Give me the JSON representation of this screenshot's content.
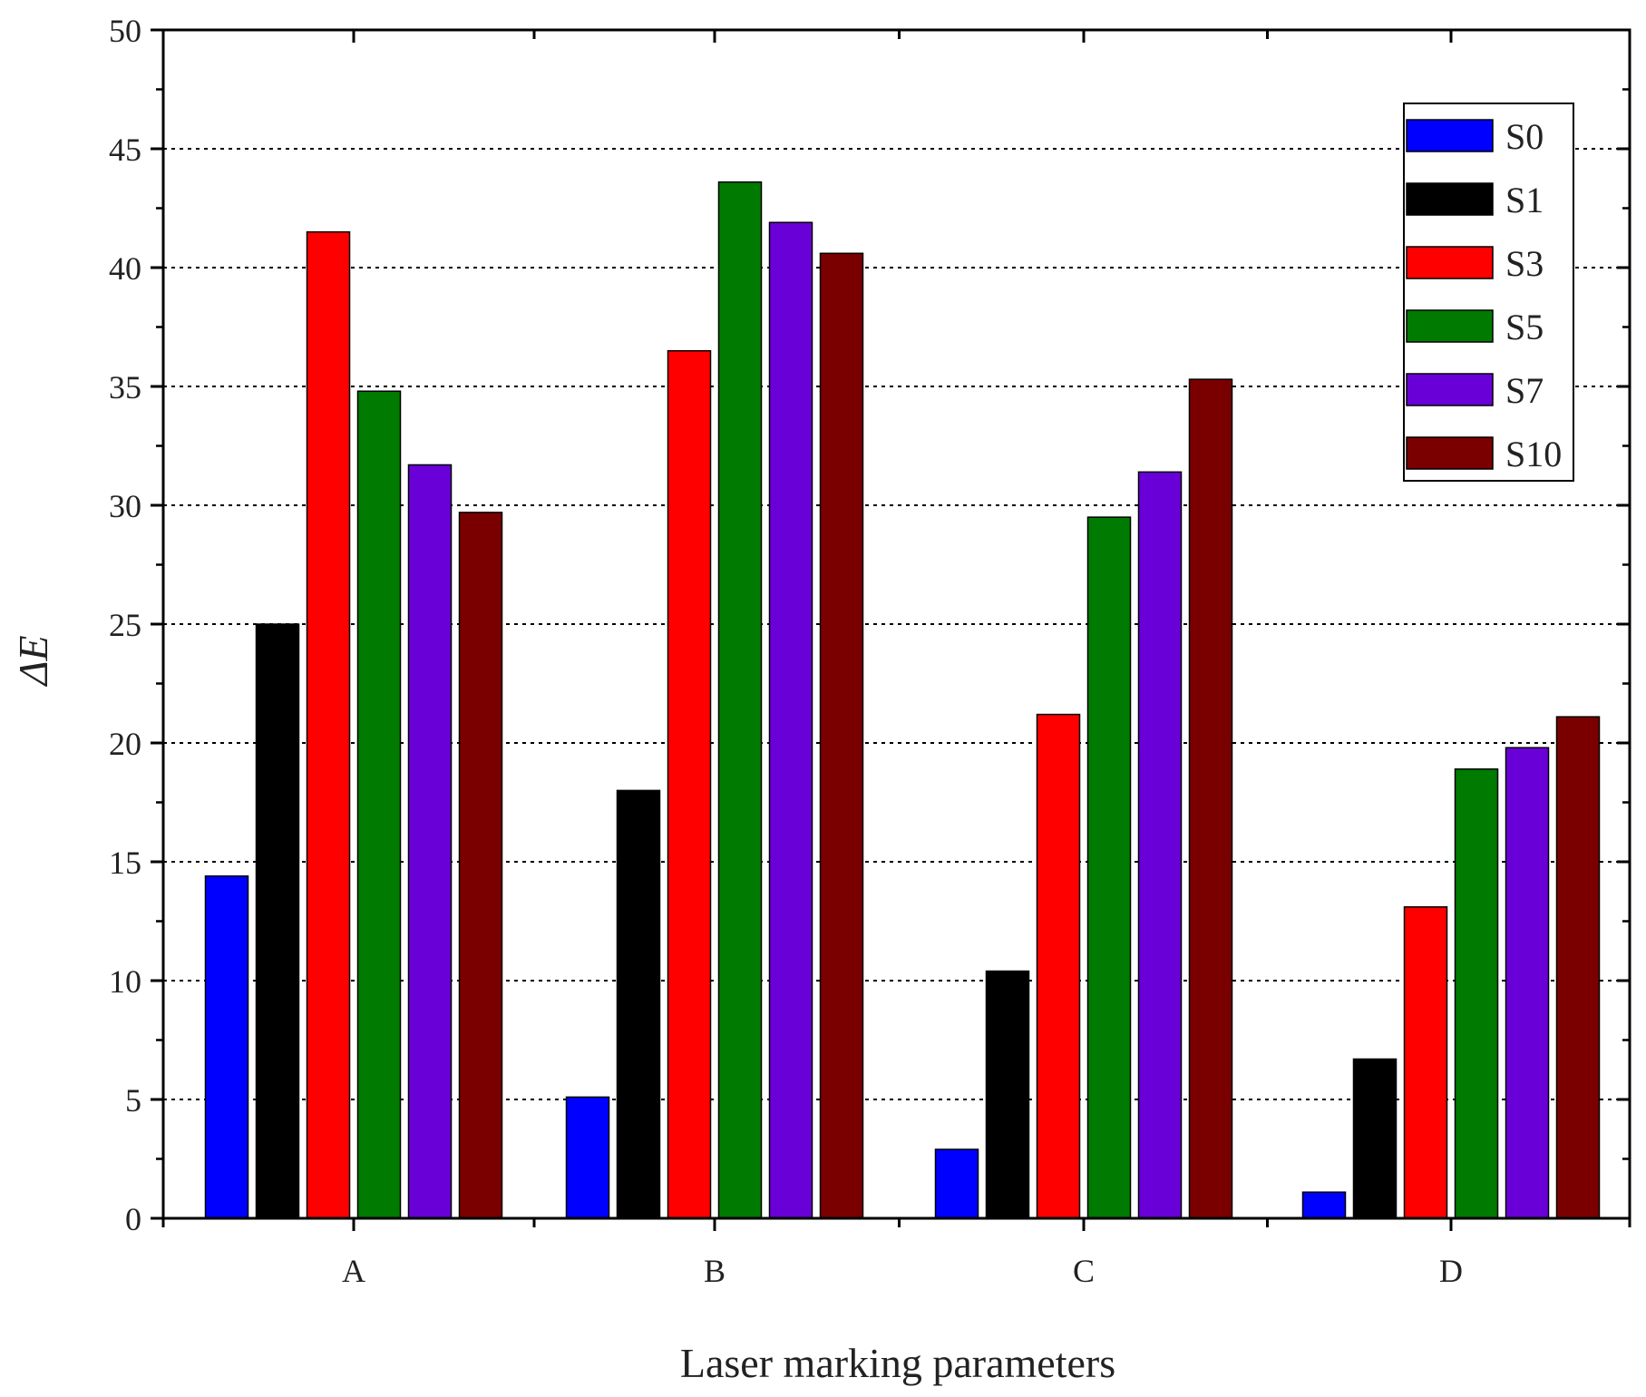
{
  "chart_data": {
    "type": "bar",
    "title": "",
    "xlabel": "Laser marking parameters",
    "ylabel": "ΔE",
    "categories": [
      "A",
      "B",
      "C",
      "D"
    ],
    "ylim": [
      0,
      50
    ],
    "yticks": [
      0,
      5,
      10,
      15,
      20,
      25,
      30,
      35,
      40,
      45,
      50
    ],
    "grid": "horizontal dotted",
    "legend_position": "top-right",
    "series": [
      {
        "name": "S0",
        "color": "#0000ff",
        "values": [
          14.4,
          5.1,
          2.9,
          1.1
        ]
      },
      {
        "name": "S1",
        "color": "#000000",
        "values": [
          25.0,
          18.0,
          10.4,
          6.7
        ]
      },
      {
        "name": "S3",
        "color": "#ff0000",
        "values": [
          41.5,
          36.5,
          21.2,
          13.1
        ]
      },
      {
        "name": "S5",
        "color": "#007a00",
        "values": [
          34.8,
          43.6,
          29.5,
          18.9
        ]
      },
      {
        "name": "S7",
        "color": "#6a00d8",
        "values": [
          31.7,
          41.9,
          31.4,
          19.8
        ]
      },
      {
        "name": "S10",
        "color": "#7a0000",
        "values": [
          29.7,
          40.6,
          35.3,
          21.1
        ]
      }
    ]
  }
}
